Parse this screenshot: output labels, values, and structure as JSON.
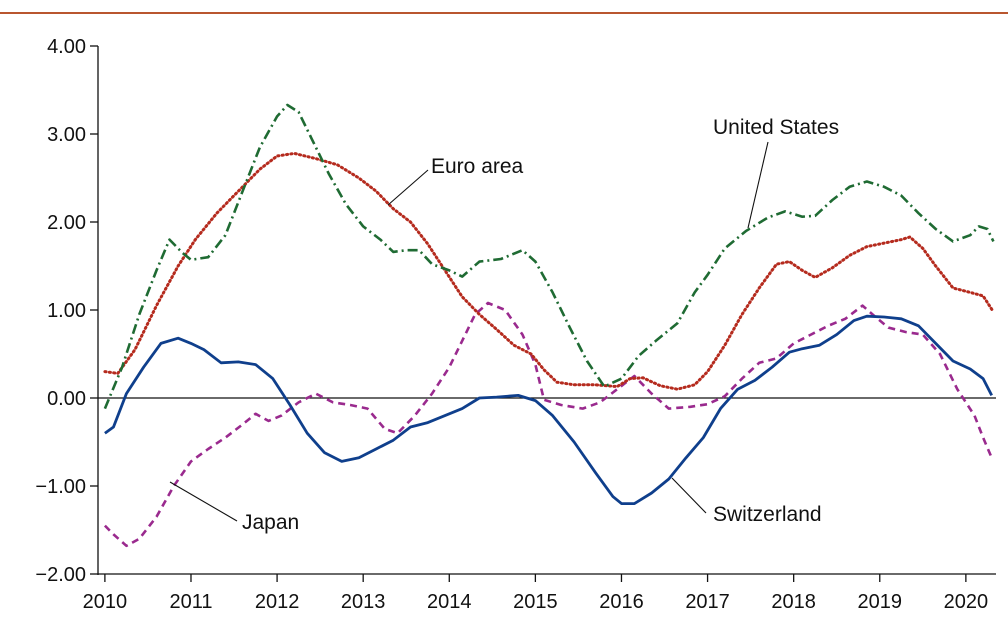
{
  "chart_data": {
    "type": "line",
    "title": "",
    "xlabel": "",
    "ylabel": "",
    "xlim": [
      2009.92,
      2020.35
    ],
    "ylim": [
      -2.0,
      4.0
    ],
    "x_ticks": [
      2010,
      2011,
      2012,
      2013,
      2014,
      2015,
      2016,
      2017,
      2018,
      2019,
      2020
    ],
    "x_tick_labels": [
      "2010",
      "2011",
      "2012",
      "2013",
      "2014",
      "2015",
      "2016",
      "2017",
      "2018",
      "2019",
      "2020"
    ],
    "y_ticks": [
      4.0,
      3.0,
      2.0,
      1.0,
      0.0,
      -1.0,
      -2.0
    ],
    "y_tick_labels": [
      "4.00",
      "3.00",
      "2.00",
      "1.00",
      "0.00",
      "−1.00",
      "−2.00"
    ],
    "zero_line": true,
    "grid": false,
    "legend": "none (series labeled directly on chart)",
    "series": [
      {
        "name": "United States",
        "color": "#1f6b33",
        "style": "dash-dot",
        "points": [
          [
            2010.0,
            -0.12
          ],
          [
            2010.2,
            0.35
          ],
          [
            2010.4,
            0.95
          ],
          [
            2010.6,
            1.45
          ],
          [
            2010.75,
            1.8
          ],
          [
            2010.9,
            1.65
          ],
          [
            2011.0,
            1.57
          ],
          [
            2011.2,
            1.6
          ],
          [
            2011.4,
            1.85
          ],
          [
            2011.6,
            2.35
          ],
          [
            2011.8,
            2.85
          ],
          [
            2012.0,
            3.2
          ],
          [
            2012.12,
            3.33
          ],
          [
            2012.25,
            3.25
          ],
          [
            2012.4,
            2.95
          ],
          [
            2012.6,
            2.55
          ],
          [
            2012.8,
            2.2
          ],
          [
            2013.0,
            1.95
          ],
          [
            2013.2,
            1.8
          ],
          [
            2013.35,
            1.66
          ],
          [
            2013.5,
            1.68
          ],
          [
            2013.65,
            1.68
          ],
          [
            2013.8,
            1.52
          ],
          [
            2014.0,
            1.45
          ],
          [
            2014.15,
            1.38
          ],
          [
            2014.35,
            1.55
          ],
          [
            2014.6,
            1.58
          ],
          [
            2014.85,
            1.68
          ],
          [
            2015.0,
            1.55
          ],
          [
            2015.2,
            1.2
          ],
          [
            2015.4,
            0.8
          ],
          [
            2015.6,
            0.42
          ],
          [
            2015.8,
            0.13
          ],
          [
            2016.0,
            0.22
          ],
          [
            2016.2,
            0.48
          ],
          [
            2016.4,
            0.65
          ],
          [
            2016.65,
            0.85
          ],
          [
            2016.85,
            1.2
          ],
          [
            2017.0,
            1.4
          ],
          [
            2017.2,
            1.7
          ],
          [
            2017.45,
            1.9
          ],
          [
            2017.7,
            2.05
          ],
          [
            2017.9,
            2.12
          ],
          [
            2018.1,
            2.06
          ],
          [
            2018.25,
            2.07
          ],
          [
            2018.45,
            2.25
          ],
          [
            2018.65,
            2.4
          ],
          [
            2018.85,
            2.46
          ],
          [
            2019.05,
            2.4
          ],
          [
            2019.25,
            2.3
          ],
          [
            2019.45,
            2.1
          ],
          [
            2019.65,
            1.92
          ],
          [
            2019.85,
            1.78
          ],
          [
            2020.05,
            1.85
          ],
          [
            2020.15,
            1.95
          ],
          [
            2020.25,
            1.92
          ],
          [
            2020.32,
            1.78
          ]
        ]
      },
      {
        "name": "Euro area",
        "color": "#b52b1e",
        "style": "dotted",
        "points": [
          [
            2010.0,
            0.3
          ],
          [
            2010.15,
            0.28
          ],
          [
            2010.35,
            0.55
          ],
          [
            2010.6,
            1.05
          ],
          [
            2010.85,
            1.5
          ],
          [
            2011.05,
            1.8
          ],
          [
            2011.3,
            2.1
          ],
          [
            2011.55,
            2.35
          ],
          [
            2011.8,
            2.6
          ],
          [
            2012.0,
            2.75
          ],
          [
            2012.2,
            2.78
          ],
          [
            2012.45,
            2.72
          ],
          [
            2012.7,
            2.65
          ],
          [
            2012.95,
            2.5
          ],
          [
            2013.15,
            2.35
          ],
          [
            2013.35,
            2.15
          ],
          [
            2013.55,
            2.0
          ],
          [
            2013.75,
            1.75
          ],
          [
            2013.95,
            1.45
          ],
          [
            2014.15,
            1.15
          ],
          [
            2014.35,
            0.95
          ],
          [
            2014.55,
            0.78
          ],
          [
            2014.75,
            0.6
          ],
          [
            2014.95,
            0.5
          ],
          [
            2015.1,
            0.32
          ],
          [
            2015.25,
            0.18
          ],
          [
            2015.45,
            0.15
          ],
          [
            2015.7,
            0.15
          ],
          [
            2015.95,
            0.13
          ],
          [
            2016.1,
            0.22
          ],
          [
            2016.25,
            0.23
          ],
          [
            2016.45,
            0.14
          ],
          [
            2016.65,
            0.1
          ],
          [
            2016.85,
            0.15
          ],
          [
            2017.0,
            0.3
          ],
          [
            2017.2,
            0.6
          ],
          [
            2017.4,
            0.95
          ],
          [
            2017.6,
            1.25
          ],
          [
            2017.8,
            1.52
          ],
          [
            2017.95,
            1.55
          ],
          [
            2018.1,
            1.45
          ],
          [
            2018.25,
            1.37
          ],
          [
            2018.45,
            1.48
          ],
          [
            2018.65,
            1.62
          ],
          [
            2018.85,
            1.72
          ],
          [
            2019.05,
            1.76
          ],
          [
            2019.25,
            1.8
          ],
          [
            2019.35,
            1.83
          ],
          [
            2019.5,
            1.7
          ],
          [
            2019.65,
            1.5
          ],
          [
            2019.85,
            1.25
          ],
          [
            2020.05,
            1.2
          ],
          [
            2020.2,
            1.16
          ],
          [
            2020.32,
            0.98
          ]
        ]
      },
      {
        "name": "Switzerland",
        "color": "#0f3f8c",
        "style": "solid",
        "points": [
          [
            2010.0,
            -0.4
          ],
          [
            2010.1,
            -0.33
          ],
          [
            2010.25,
            0.05
          ],
          [
            2010.45,
            0.35
          ],
          [
            2010.65,
            0.62
          ],
          [
            2010.85,
            0.68
          ],
          [
            2011.0,
            0.62
          ],
          [
            2011.15,
            0.55
          ],
          [
            2011.35,
            0.4
          ],
          [
            2011.55,
            0.41
          ],
          [
            2011.75,
            0.38
          ],
          [
            2011.95,
            0.22
          ],
          [
            2012.15,
            -0.08
          ],
          [
            2012.35,
            -0.4
          ],
          [
            2012.55,
            -0.62
          ],
          [
            2012.75,
            -0.72
          ],
          [
            2012.95,
            -0.68
          ],
          [
            2013.15,
            -0.58
          ],
          [
            2013.35,
            -0.48
          ],
          [
            2013.55,
            -0.33
          ],
          [
            2013.75,
            -0.28
          ],
          [
            2013.95,
            -0.2
          ],
          [
            2014.15,
            -0.12
          ],
          [
            2014.35,
            0.0
          ],
          [
            2014.55,
            0.01
          ],
          [
            2014.8,
            0.03
          ],
          [
            2015.0,
            -0.03
          ],
          [
            2015.2,
            -0.2
          ],
          [
            2015.45,
            -0.5
          ],
          [
            2015.7,
            -0.85
          ],
          [
            2015.9,
            -1.12
          ],
          [
            2016.0,
            -1.2
          ],
          [
            2016.15,
            -1.2
          ],
          [
            2016.35,
            -1.08
          ],
          [
            2016.55,
            -0.92
          ],
          [
            2016.75,
            -0.68
          ],
          [
            2016.95,
            -0.45
          ],
          [
            2017.15,
            -0.12
          ],
          [
            2017.35,
            0.1
          ],
          [
            2017.55,
            0.2
          ],
          [
            2017.75,
            0.35
          ],
          [
            2017.95,
            0.52
          ],
          [
            2018.1,
            0.56
          ],
          [
            2018.3,
            0.6
          ],
          [
            2018.5,
            0.72
          ],
          [
            2018.7,
            0.88
          ],
          [
            2018.85,
            0.93
          ],
          [
            2019.05,
            0.92
          ],
          [
            2019.25,
            0.9
          ],
          [
            2019.45,
            0.82
          ],
          [
            2019.65,
            0.62
          ],
          [
            2019.85,
            0.42
          ],
          [
            2020.05,
            0.33
          ],
          [
            2020.2,
            0.22
          ],
          [
            2020.3,
            0.03
          ]
        ]
      },
      {
        "name": "Japan",
        "color": "#9a2a8e",
        "style": "dashed",
        "points": [
          [
            2010.0,
            -1.45
          ],
          [
            2010.1,
            -1.55
          ],
          [
            2010.25,
            -1.68
          ],
          [
            2010.4,
            -1.6
          ],
          [
            2010.6,
            -1.35
          ],
          [
            2010.8,
            -1.0
          ],
          [
            2011.0,
            -0.72
          ],
          [
            2011.2,
            -0.58
          ],
          [
            2011.4,
            -0.45
          ],
          [
            2011.6,
            -0.3
          ],
          [
            2011.75,
            -0.18
          ],
          [
            2011.9,
            -0.26
          ],
          [
            2012.05,
            -0.2
          ],
          [
            2012.25,
            -0.05
          ],
          [
            2012.45,
            0.05
          ],
          [
            2012.65,
            -0.05
          ],
          [
            2012.85,
            -0.08
          ],
          [
            2013.05,
            -0.12
          ],
          [
            2013.25,
            -0.35
          ],
          [
            2013.4,
            -0.4
          ],
          [
            2013.6,
            -0.2
          ],
          [
            2013.8,
            0.05
          ],
          [
            2014.0,
            0.35
          ],
          [
            2014.15,
            0.65
          ],
          [
            2014.3,
            0.95
          ],
          [
            2014.45,
            1.08
          ],
          [
            2014.65,
            1.0
          ],
          [
            2014.85,
            0.72
          ],
          [
            2015.0,
            0.38
          ],
          [
            2015.1,
            -0.02
          ],
          [
            2015.3,
            -0.08
          ],
          [
            2015.55,
            -0.12
          ],
          [
            2015.75,
            -0.05
          ],
          [
            2015.95,
            0.1
          ],
          [
            2016.15,
            0.25
          ],
          [
            2016.35,
            0.05
          ],
          [
            2016.55,
            -0.12
          ],
          [
            2016.8,
            -0.1
          ],
          [
            2017.0,
            -0.07
          ],
          [
            2017.2,
            0.02
          ],
          [
            2017.4,
            0.22
          ],
          [
            2017.6,
            0.4
          ],
          [
            2017.8,
            0.45
          ],
          [
            2018.0,
            0.62
          ],
          [
            2018.2,
            0.72
          ],
          [
            2018.4,
            0.82
          ],
          [
            2018.6,
            0.9
          ],
          [
            2018.8,
            1.05
          ],
          [
            2018.95,
            0.92
          ],
          [
            2019.1,
            0.8
          ],
          [
            2019.3,
            0.75
          ],
          [
            2019.5,
            0.72
          ],
          [
            2019.7,
            0.5
          ],
          [
            2019.9,
            0.1
          ],
          [
            2020.1,
            -0.2
          ],
          [
            2020.2,
            -0.45
          ],
          [
            2020.3,
            -0.68
          ]
        ]
      }
    ],
    "annotations": [
      {
        "text": "Euro area",
        "series": "Euro area"
      },
      {
        "text": "United States",
        "series": "United States"
      },
      {
        "text": "Japan",
        "series": "Japan"
      },
      {
        "text": "Switzerland",
        "series": "Switzerland"
      }
    ]
  }
}
